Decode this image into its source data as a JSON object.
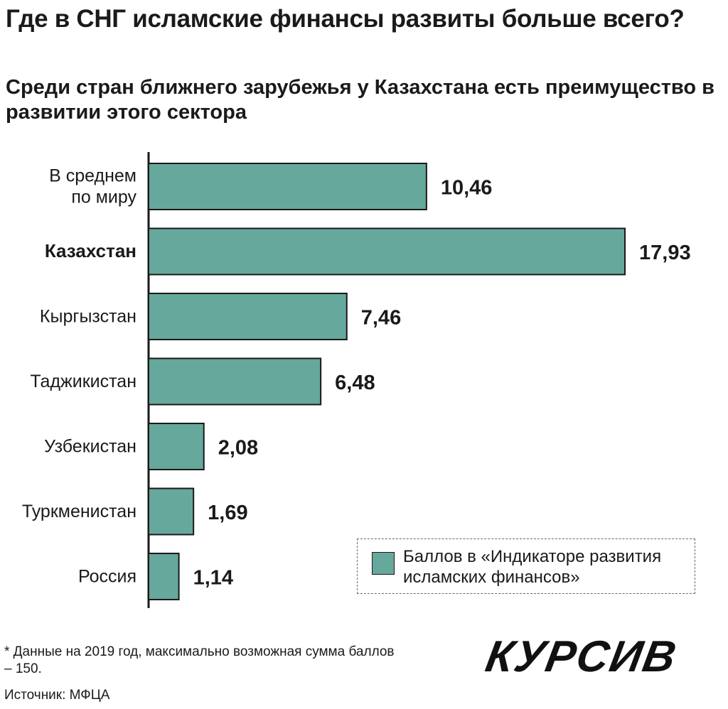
{
  "title": "Где в СНГ исламские финансы развиты больше всего?",
  "subtitle": "Среди стран ближнего зарубежья у Казахстана есть преимущество в развитии этого сектора",
  "legend_label": "Баллов в «Индикаторе развития исламских финансов»",
  "footnote": "* Данные на 2019 год, максимально возможная сумма баллов – 150.",
  "source": "Источник: МФЦА",
  "logo_text": "КУРСИВ",
  "colors": {
    "bar_fill": "#66a89c",
    "bar_stroke": "#1a1a1a",
    "text": "#1a1a1a"
  },
  "chart_data": {
    "type": "bar",
    "orientation": "horizontal",
    "categories": [
      [
        "В среднем",
        "по миру"
      ],
      [
        "Казахстан"
      ],
      [
        "Кыргызстан"
      ],
      [
        "Таджикистан"
      ],
      [
        "Узбекистан"
      ],
      [
        "Туркменистан"
      ],
      [
        "Россия"
      ]
    ],
    "values": [
      10.46,
      17.93,
      7.46,
      6.48,
      2.08,
      1.69,
      1.14
    ],
    "value_labels": [
      "10,46",
      "17,93",
      "7,46",
      "6,48",
      "2,08",
      "1,69",
      "1,14"
    ],
    "highlight_category_index": 1,
    "series": [
      {
        "name": "Баллов в «Индикаторе развития исламских финансов»",
        "values": [
          10.46,
          17.93,
          7.46,
          6.48,
          2.08,
          1.69,
          1.14
        ]
      }
    ],
    "xlim": [
      0,
      17.93
    ],
    "grid": false,
    "legend_position": "bottom-right"
  }
}
